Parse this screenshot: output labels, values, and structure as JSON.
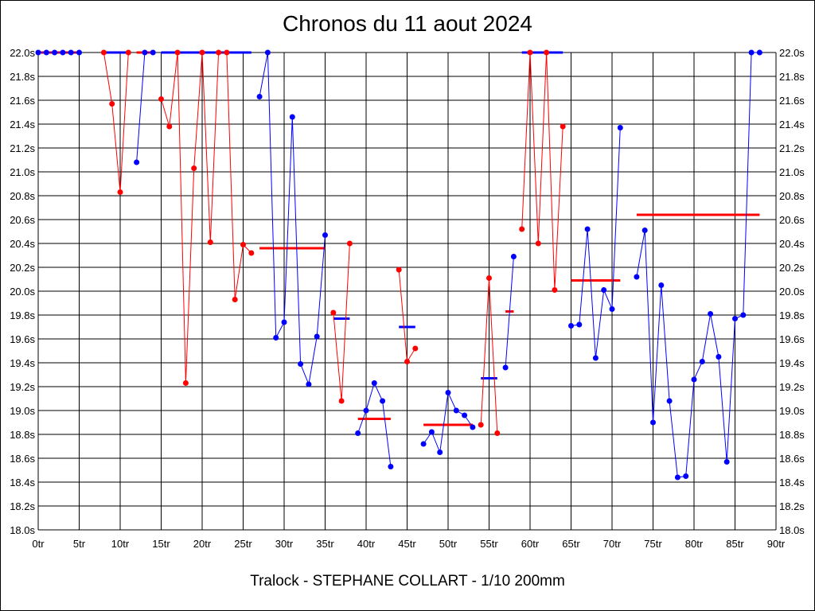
{
  "chart_data": {
    "type": "line",
    "title": "Chronos du 11 aout 2024",
    "xlabel": "Tralock - STEPHANE COLLART - 1/10 200mm",
    "ylabel": "",
    "xlim": [
      0,
      90
    ],
    "ylim": [
      18.0,
      22.0
    ],
    "grid": true,
    "x_ticks": [
      0,
      5,
      10,
      15,
      20,
      25,
      30,
      35,
      40,
      45,
      50,
      55,
      60,
      65,
      70,
      75,
      80,
      85,
      90
    ],
    "x_tick_suffix": "tr",
    "y_ticks": [
      18.0,
      18.2,
      18.4,
      18.6,
      18.8,
      19.0,
      19.2,
      19.4,
      19.6,
      19.8,
      20.0,
      20.2,
      20.4,
      20.6,
      20.8,
      21.0,
      21.2,
      21.4,
      21.6,
      21.8,
      22.0
    ],
    "y_tick_suffix": "s",
    "colors": {
      "red": "#ff0000",
      "blue": "#0000ff",
      "grid": "#000000"
    },
    "series": [
      {
        "name": "s1",
        "color": "blue",
        "points": [
          [
            0,
            22.0
          ],
          [
            1,
            22.0
          ],
          [
            2,
            22.0
          ],
          [
            3,
            22.0
          ],
          [
            4,
            22.0
          ],
          [
            5,
            22.0
          ]
        ]
      },
      {
        "name": "s2",
        "color": "red",
        "points": [
          [
            8,
            22.0
          ],
          [
            9,
            21.57
          ],
          [
            10,
            20.83
          ],
          [
            11,
            22.0
          ]
        ]
      },
      {
        "name": "s3",
        "color": "blue",
        "points": [
          [
            12,
            21.08
          ],
          [
            13,
            22.0
          ],
          [
            14,
            22.0
          ]
        ]
      },
      {
        "name": "s4",
        "color": "red",
        "points": [
          [
            15,
            21.61
          ],
          [
            16,
            21.38
          ],
          [
            17,
            22.0
          ],
          [
            18,
            19.23
          ],
          [
            19,
            21.03
          ],
          [
            20,
            22.0
          ],
          [
            21,
            20.41
          ],
          [
            22,
            22.0
          ],
          [
            23,
            22.0
          ],
          [
            24,
            19.93
          ],
          [
            25,
            20.39
          ],
          [
            26,
            20.32
          ]
        ]
      },
      {
        "name": "s5",
        "color": "blue",
        "points": [
          [
            27,
            21.63
          ],
          [
            28,
            22.0
          ],
          [
            29,
            19.61
          ],
          [
            30,
            19.74
          ],
          [
            31,
            21.46
          ],
          [
            32,
            19.39
          ],
          [
            33,
            19.22
          ],
          [
            34,
            19.62
          ],
          [
            35,
            20.47
          ]
        ]
      },
      {
        "name": "s6",
        "color": "red",
        "points": [
          [
            36,
            19.82
          ],
          [
            37,
            19.08
          ],
          [
            38,
            20.4
          ]
        ]
      },
      {
        "name": "s7",
        "color": "blue",
        "points": [
          [
            39,
            18.81
          ],
          [
            40,
            19.0
          ],
          [
            41,
            19.23
          ],
          [
            42,
            19.08
          ],
          [
            43,
            18.53
          ]
        ]
      },
      {
        "name": "s8",
        "color": "red",
        "points": [
          [
            44,
            20.18
          ],
          [
            45,
            19.41
          ],
          [
            46,
            19.52
          ]
        ]
      },
      {
        "name": "s9",
        "color": "blue",
        "points": [
          [
            47,
            18.72
          ],
          [
            48,
            18.82
          ],
          [
            49,
            18.65
          ],
          [
            50,
            19.15
          ],
          [
            51,
            19.0
          ],
          [
            52,
            18.96
          ],
          [
            53,
            18.86
          ]
        ]
      },
      {
        "name": "s10",
        "color": "red",
        "points": [
          [
            54,
            18.88
          ],
          [
            55,
            20.11
          ],
          [
            56,
            18.81
          ]
        ]
      },
      {
        "name": "s11",
        "color": "blue",
        "points": [
          [
            57,
            19.36
          ],
          [
            58,
            20.29
          ]
        ]
      },
      {
        "name": "s12",
        "color": "red",
        "points": [
          [
            59,
            20.52
          ],
          [
            60,
            22.0
          ],
          [
            61,
            20.4
          ],
          [
            62,
            22.0
          ],
          [
            63,
            20.01
          ],
          [
            64,
            21.38
          ]
        ]
      },
      {
        "name": "s13",
        "color": "blue",
        "points": [
          [
            65,
            19.71
          ],
          [
            66,
            19.72
          ],
          [
            67,
            20.52
          ],
          [
            68,
            19.44
          ],
          [
            69,
            20.01
          ],
          [
            70,
            19.85
          ],
          [
            71,
            21.37
          ]
        ]
      },
      {
        "name": "s14",
        "color": "blue",
        "points": [
          [
            73,
            20.12
          ],
          [
            74,
            20.51
          ],
          [
            75,
            18.9
          ],
          [
            76,
            20.05
          ],
          [
            77,
            19.08
          ],
          [
            78,
            18.44
          ],
          [
            79,
            18.45
          ],
          [
            80,
            19.26
          ],
          [
            81,
            19.41
          ],
          [
            82,
            19.81
          ],
          [
            83,
            19.45
          ],
          [
            84,
            18.57
          ],
          [
            85,
            19.77
          ],
          [
            86,
            19.8
          ],
          [
            87,
            22.0
          ],
          [
            88,
            22.0
          ]
        ]
      }
    ],
    "averages": [
      {
        "color": "red",
        "from": 0,
        "to": 5,
        "value": 22.0
      },
      {
        "color": "blue",
        "from": 8,
        "to": 11.3,
        "value": 22.0
      },
      {
        "color": "red",
        "from": 12,
        "to": 14,
        "value": 22.0
      },
      {
        "color": "blue",
        "from": 15,
        "to": 26,
        "value": 22.0
      },
      {
        "color": "red",
        "from": 27,
        "to": 35,
        "value": 20.36
      },
      {
        "color": "blue",
        "from": 36,
        "to": 38,
        "value": 19.77
      },
      {
        "color": "red",
        "from": 39,
        "to": 43,
        "value": 18.93
      },
      {
        "color": "blue",
        "from": 44,
        "to": 46,
        "value": 19.7
      },
      {
        "color": "red",
        "from": 47,
        "to": 53,
        "value": 18.88
      },
      {
        "color": "blue",
        "from": 54,
        "to": 56,
        "value": 19.27
      },
      {
        "color": "red",
        "from": 57,
        "to": 58,
        "value": 19.83
      },
      {
        "color": "blue",
        "from": 59,
        "to": 64,
        "value": 22.0
      },
      {
        "color": "red",
        "from": 65,
        "to": 71,
        "value": 20.09
      },
      {
        "color": "red",
        "from": 73,
        "to": 88,
        "value": 20.64
      }
    ]
  }
}
